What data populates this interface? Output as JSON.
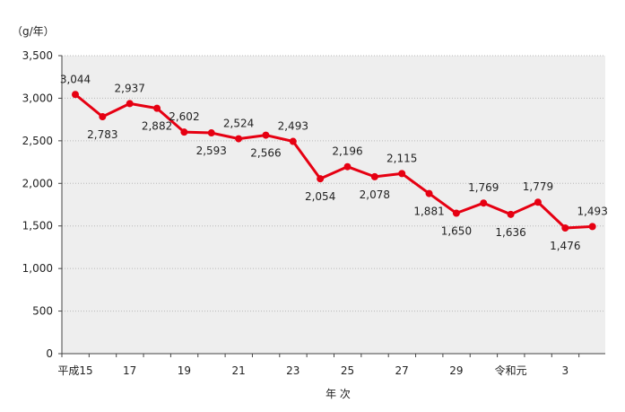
{
  "chart_data": {
    "type": "line",
    "unit_label": "（g/年）",
    "xlabel": "年 次",
    "ylabel": "",
    "ylim": [
      0,
      3500
    ],
    "yticks": [
      0,
      500,
      1000,
      1500,
      2000,
      2500,
      3000,
      3500
    ],
    "ytick_labels": [
      "0",
      "500",
      "1,000",
      "1,500",
      "2,000",
      "2,500",
      "3,000",
      "3,500"
    ],
    "xtick_labels": [
      {
        "index": 0,
        "label": "平成15"
      },
      {
        "index": 2,
        "label": "17"
      },
      {
        "index": 4,
        "label": "19"
      },
      {
        "index": 6,
        "label": "21"
      },
      {
        "index": 8,
        "label": "23"
      },
      {
        "index": 10,
        "label": "25"
      },
      {
        "index": 12,
        "label": "27"
      },
      {
        "index": 14,
        "label": "29"
      },
      {
        "index": 16,
        "label": "令和元"
      },
      {
        "index": 18,
        "label": "3"
      }
    ],
    "grid": true,
    "series": [
      {
        "name": "",
        "color": "#e60012",
        "values": [
          3044,
          2783,
          2937,
          2882,
          2602,
          2593,
          2524,
          2566,
          2493,
          2054,
          2196,
          2078,
          2115,
          1881,
          1650,
          1769,
          1636,
          1779,
          1476,
          1493
        ],
        "value_labels": [
          "3,044",
          "2,783",
          "2,937",
          "2,882",
          "2,602",
          "2,593",
          "2,524",
          "2,566",
          "2,493",
          "2,054",
          "2,196",
          "2,078",
          "2,115",
          "1,881",
          "1,650",
          "1,769",
          "1,636",
          "1,779",
          "1,476",
          "1,493"
        ],
        "label_positions": [
          "above",
          "below",
          "above",
          "below",
          "above",
          "below",
          "above",
          "below",
          "above",
          "below",
          "above",
          "below",
          "above",
          "below",
          "below",
          "above",
          "below",
          "above",
          "below",
          "above"
        ]
      }
    ]
  }
}
